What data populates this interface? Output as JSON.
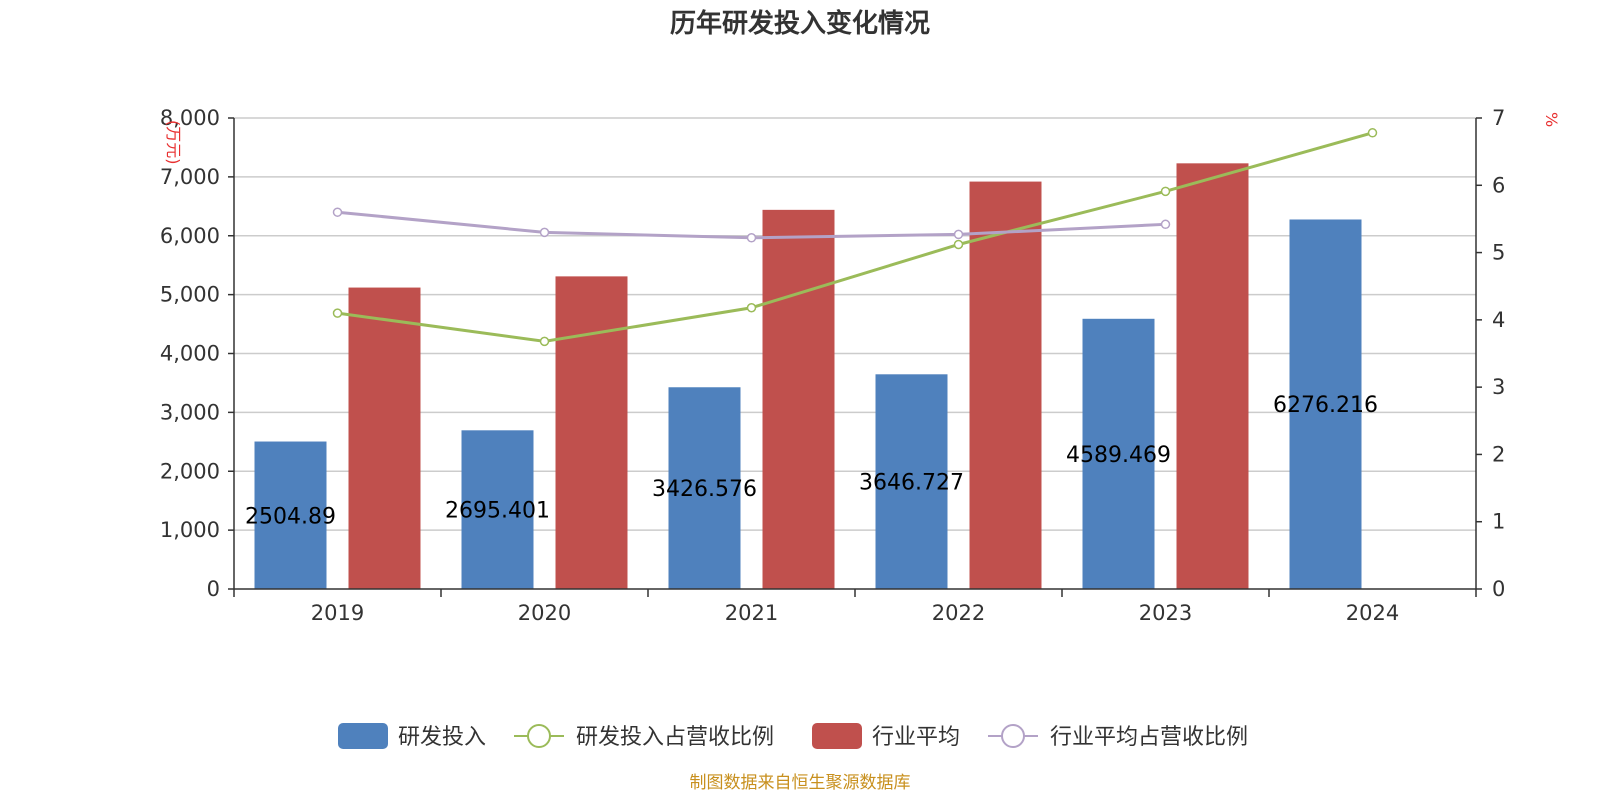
{
  "chart_data": {
    "type": "bar",
    "title": "历年研发投入变化情况",
    "categories": [
      "2019",
      "2020",
      "2021",
      "2022",
      "2023",
      "2024"
    ],
    "y_left": {
      "unit": "(万元)",
      "ylim": [
        0,
        8000
      ],
      "ticks": [
        "0",
        "1,000",
        "2,000",
        "3,000",
        "4,000",
        "5,000",
        "6,000",
        "7,000",
        "8,000"
      ]
    },
    "y_right": {
      "unit": "%",
      "ylim": [
        0,
        7
      ],
      "ticks": [
        "0",
        "1",
        "2",
        "3",
        "4",
        "5",
        "6",
        "7"
      ]
    },
    "series": [
      {
        "name": "研发投入",
        "type": "bar",
        "axis": "left",
        "color": "#4f81bd",
        "values": [
          2504.89,
          2695.401,
          3426.576,
          3646.727,
          4589.469,
          6276.216
        ],
        "labels": [
          "2504.89",
          "2695.401",
          "3426.576",
          "3646.727",
          "4589.469",
          "6276.216"
        ]
      },
      {
        "name": "研发投入占营收比例",
        "type": "line",
        "axis": "right",
        "color": "#9bbb59",
        "values": [
          4.1,
          3.68,
          4.18,
          5.12,
          5.91,
          6.78
        ]
      },
      {
        "name": "行业平均",
        "type": "bar",
        "axis": "left",
        "color": "#c0504d",
        "values": [
          5120,
          5310,
          6440,
          6920,
          7230,
          null
        ]
      },
      {
        "name": "行业平均占营收比例",
        "type": "line",
        "axis": "right",
        "color": "#b3a2c7",
        "values": [
          5.6,
          5.3,
          5.22,
          5.27,
          5.42,
          null
        ]
      }
    ],
    "grid": true,
    "legend": "bottom-center"
  },
  "source": "制图数据来自恒生聚源数据库"
}
